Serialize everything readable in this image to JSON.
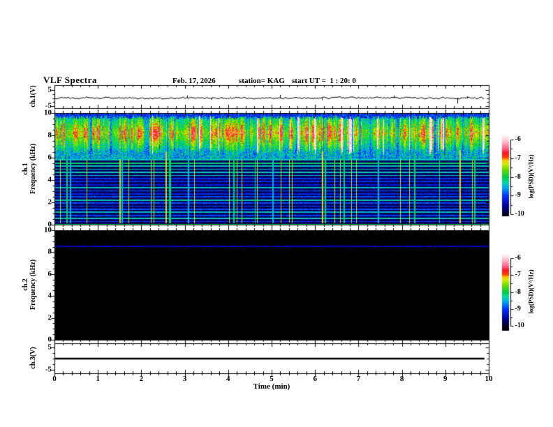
{
  "header": {
    "title": "VLF Spectra",
    "date": "Feb. 17, 2026",
    "station": "station= KAG",
    "start_ut": "start UT =  1 : 20: 0"
  },
  "colors": {
    "background": "#ffffff",
    "frame": "#000000",
    "trace": "#000000",
    "spec2_background": "#000000",
    "spec2_line": "#0000cc",
    "colormap_stops": [
      [
        -10.4,
        "#000000"
      ],
      [
        -10.0,
        "#05051a"
      ],
      [
        -9.55,
        "#000099"
      ],
      [
        -9.0,
        "#0033ff"
      ],
      [
        -8.55,
        "#00aaee"
      ],
      [
        -8.25,
        "#00dd99"
      ],
      [
        -8.0,
        "#00cc44"
      ],
      [
        -7.6,
        "#66dd00"
      ],
      [
        -7.3,
        "#ccee00"
      ],
      [
        -7.1,
        "#ffcc00"
      ],
      [
        -6.95,
        "#ff4400"
      ],
      [
        -6.7,
        "#ff1122"
      ],
      [
        -6.45,
        "#ff6688"
      ],
      [
        -6.1,
        "#ffbbcc"
      ],
      [
        -5.7,
        "#ffffff"
      ]
    ]
  },
  "chart_data": {
    "xlabel": "Time (min)",
    "xlim_min": [
      0,
      10
    ],
    "x_minor_step_min": 0.2,
    "xticks": [
      {
        "value": 0,
        "label": "0"
      },
      {
        "value": 1,
        "label": "1"
      },
      {
        "value": 2,
        "label": "2"
      },
      {
        "value": 3,
        "label": "3"
      },
      {
        "value": 4,
        "label": "4"
      },
      {
        "value": 5,
        "label": "5"
      },
      {
        "value": 6,
        "label": "6"
      },
      {
        "value": 7,
        "label": "7"
      },
      {
        "value": 8,
        "label": "8"
      },
      {
        "value": 9,
        "label": "9"
      },
      {
        "value": 10,
        "label": "10"
      }
    ],
    "panels": [
      {
        "type": "line",
        "name": "ch1 waveform",
        "ylabel": "ch.1(V)",
        "yticks": [
          {
            "value": 5,
            "label": "5"
          },
          {
            "value": -5,
            "label": "-5"
          }
        ],
        "baseline_v": 0,
        "noise_amplitude_v": 0.5,
        "spikes": [
          {
            "t_min": 3.05,
            "v": 1.6
          },
          {
            "t_min": 3.62,
            "v": -1.2
          },
          {
            "t_min": 5.2,
            "v": 2.0
          },
          {
            "t_min": 6.15,
            "v": -1.3
          },
          {
            "t_min": 7.82,
            "v": 1.5
          },
          {
            "t_min": 9.27,
            "v": -3.4
          },
          {
            "t_min": 9.5,
            "v": 1.1
          }
        ],
        "data_end_min": 9.9
      },
      {
        "type": "spectrogram",
        "name": "ch1 spectrogram",
        "ylabel_line1": "ch.1",
        "ylabel_line2": "Frequency (kHz)",
        "ylim_khz": [
          0,
          10
        ],
        "yticks": [
          {
            "value": 10,
            "label": "10"
          },
          {
            "value": 8,
            "label": "8"
          },
          {
            "value": 6,
            "label": "6"
          },
          {
            "value": 4,
            "label": "4"
          },
          {
            "value": 2,
            "label": "2"
          },
          {
            "value": 0,
            "label": "0"
          }
        ],
        "colorbar": {
          "label": "log(PSD)(V²/Hz)",
          "range": [
            -10,
            -6
          ],
          "ticks": [
            {
              "value": -6,
              "label": "-6"
            },
            {
              "value": -7,
              "label": "-7"
            },
            {
              "value": -8,
              "label": "-8"
            },
            {
              "value": -9,
              "label": "-9"
            },
            {
              "value": -10,
              "label": "-10"
            }
          ]
        },
        "features": {
          "active_band_khz": [
            6.3,
            9.72
          ],
          "speckle_band_khz": [
            5.85,
            6.3
          ],
          "harmonic_spacing_khz": 0.2757,
          "strong_harmonics": [
            2,
            4,
            8,
            12,
            16,
            17,
            18,
            19,
            20,
            21
          ],
          "bottom_line_khz": 0.05,
          "event_lines": [
            {
              "t_min": 0.27,
              "kind": "green"
            },
            {
              "t_min": 0.35,
              "kind": "cyan"
            },
            {
              "t_min": 1.55,
              "kind": "cyan"
            },
            {
              "t_min": 2.56,
              "kind": "red"
            },
            {
              "t_min": 2.63,
              "kind": "green"
            },
            {
              "t_min": 3.07,
              "kind": "cyan"
            },
            {
              "t_min": 4.12,
              "kind": "green"
            },
            {
              "t_min": 5.02,
              "kind": "cyan"
            },
            {
              "t_min": 6.15,
              "kind": "red"
            },
            {
              "t_min": 6.66,
              "kind": "green"
            },
            {
              "t_min": 7.45,
              "kind": "cyan"
            },
            {
              "t_min": 8.28,
              "kind": "green"
            },
            {
              "t_min": 9.32,
              "kind": "red"
            },
            {
              "t_min": 9.66,
              "kind": "green"
            }
          ]
        }
      },
      {
        "type": "spectrogram",
        "name": "ch2 spectrogram",
        "ylabel_line1": "ch.2",
        "ylabel_line2": "Frequency (kHz)",
        "ylim_khz": [
          0,
          10
        ],
        "yticks": [
          {
            "value": 10,
            "label": "10"
          },
          {
            "value": 8,
            "label": "8"
          },
          {
            "value": 6,
            "label": "6"
          },
          {
            "value": 4,
            "label": "4"
          },
          {
            "value": 2,
            "label": "2"
          },
          {
            "value": 0,
            "label": "0"
          }
        ],
        "colorbar": {
          "label": "log(PSD)(V²/Hz)",
          "range": [
            -10,
            -6
          ],
          "ticks": [
            {
              "value": -6,
              "label": "-6"
            },
            {
              "value": -7,
              "label": "-7"
            },
            {
              "value": -8,
              "label": "-8"
            },
            {
              "value": -9,
              "label": "-9"
            },
            {
              "value": -10,
              "label": "-10"
            }
          ]
        },
        "features": {
          "background": "black (no signal)",
          "line_khz": 8.6,
          "line_color": "#0000cc"
        }
      },
      {
        "type": "line",
        "name": "ch3 waveform",
        "ylabel": "ch.3(V)",
        "yticks": [
          {
            "value": 5,
            "label": "5"
          },
          {
            "value": -5,
            "label": "-5"
          }
        ],
        "flat_value_v": 0,
        "data_end_min": 9.9
      }
    ]
  }
}
